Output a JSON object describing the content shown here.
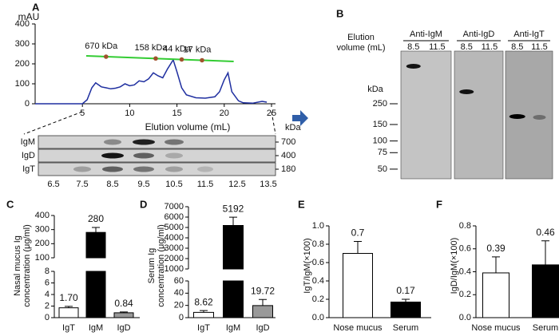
{
  "panel_labels": [
    "A",
    "B",
    "C",
    "D",
    "E",
    "F"
  ],
  "chart_data": [
    {
      "type": "line",
      "y_label": "mAU",
      "x_label": "Elution volume (mL)",
      "color": "#1f2fa0",
      "x": [
        0,
        5,
        5.5,
        6,
        6.4,
        7,
        7.5,
        8,
        8.5,
        9,
        9.5,
        10,
        10.5,
        11,
        11.5,
        12,
        12.5,
        13,
        13.5,
        14,
        14.6,
        15,
        15.5,
        16,
        17,
        18,
        19,
        19.5,
        20,
        20.4,
        20.8,
        21.5,
        22,
        23,
        24,
        24.5
      ],
      "y": [
        0,
        0,
        20,
        80,
        105,
        85,
        80,
        75,
        78,
        85,
        100,
        90,
        95,
        115,
        110,
        125,
        155,
        140,
        130,
        175,
        220,
        160,
        80,
        45,
        30,
        28,
        35,
        60,
        120,
        155,
        60,
        15,
        5,
        3,
        12,
        8
      ],
      "xlim": [
        0,
        25
      ],
      "ylim": [
        0,
        400
      ],
      "xticks": [
        5,
        10,
        15,
        20,
        25
      ],
      "yticks": [
        0,
        100,
        200,
        300,
        400
      ],
      "standards": {
        "color": "#33cc33",
        "marker_color": "#a0522d",
        "line_x": [
          5.4,
          21
        ],
        "line_y": [
          240,
          212
        ],
        "x": [
          7.5,
          12.75,
          15.5,
          17.65
        ],
        "y": [
          236,
          227,
          222,
          218
        ],
        "labels": [
          "670 kDa",
          "158 kDa",
          "44 kDa",
          "17 kDa"
        ]
      }
    },
    {
      "type": "bar",
      "y_label": [
        "Nasal mucus Ig",
        "concentration (μg/ml)"
      ],
      "categories": [
        "IgT",
        "IgM",
        "IgD"
      ],
      "values": [
        1.7,
        280,
        0.84
      ],
      "value_labels": [
        "1.70",
        "280",
        "0.84"
      ],
      "errors": [
        0.25,
        35,
        0.15
      ],
      "colors": [
        "#ffffff",
        "#000000",
        "#999999"
      ],
      "segments": [
        {
          "ylim": [
            0,
            8
          ],
          "yticks": [
            0,
            2,
            4,
            6,
            8
          ]
        },
        {
          "ylim": [
            100,
            400
          ],
          "yticks": [
            100,
            200,
            300,
            400
          ]
        }
      ]
    },
    {
      "type": "bar",
      "y_label": [
        "Serum Ig",
        "concentration (μg/ml)"
      ],
      "categories": [
        "IgT",
        "IgM",
        "IgD"
      ],
      "values": [
        8.62,
        5192,
        19.72
      ],
      "errors": [
        3,
        800,
        10
      ],
      "colors": [
        "#ffffff",
        "#000000",
        "#999999"
      ],
      "segments": [
        {
          "ylim": [
            0,
            60
          ],
          "yticks": [
            0,
            20,
            40,
            60
          ]
        },
        {
          "ylim": [
            1000,
            7000
          ],
          "yticks": [
            1000,
            2000,
            3000,
            4000,
            5000,
            6000,
            7000
          ]
        }
      ]
    },
    {
      "type": "bar",
      "y_label": [
        "IgT/IgM(×100)"
      ],
      "categories": [
        "Nose mucus",
        "Serum"
      ],
      "values": [
        0.7,
        0.17
      ],
      "errors": [
        0.13,
        0.03
      ],
      "colors": [
        "#ffffff",
        "#000000"
      ],
      "segments": [
        {
          "ylim": [
            0,
            1
          ],
          "yticks": [
            {
              "value": 0,
              "label": "0.0"
            },
            0.2,
            0.4,
            0.6,
            0.8,
            {
              "value": 1,
              "label": "1.0"
            }
          ]
        }
      ]
    },
    {
      "type": "bar",
      "y_label": [
        "IgD/IgM(×100)"
      ],
      "categories": [
        "Nose mucus",
        "Serum"
      ],
      "values": [
        0.39,
        0.46
      ],
      "errors": [
        0.14,
        0.21
      ],
      "colors": [
        "#ffffff",
        "#000000"
      ],
      "segments": [
        {
          "ylim": [
            0,
            0.8
          ],
          "yticks": [
            {
              "value": 0,
              "label": "0.0"
            },
            0.2,
            0.4,
            0.6,
            0.8
          ]
        }
      ]
    }
  ],
  "gel_a": {
    "unit": "kDa",
    "rows": [
      "IgM",
      "IgD",
      "IgT"
    ],
    "sizes": [
      700,
      400,
      180
    ],
    "lanes": [
      6.5,
      7.5,
      8.5,
      9.5,
      10.5,
      11.5,
      12.5,
      13.5
    ]
  },
  "gel_b": {
    "axis_label": [
      "Elution",
      "volume (mL)"
    ],
    "unit": "kDa",
    "markers": [
      250,
      150,
      100,
      75,
      50
    ],
    "blots": [
      {
        "title": "Anti-IgM",
        "lanes": [
          8.5,
          11.5
        ]
      },
      {
        "title": "Anti-IgD",
        "lanes": [
          8.5,
          11.5
        ]
      },
      {
        "title": "Anti-IgT",
        "lanes": [
          8.5,
          11.5
        ]
      }
    ]
  }
}
